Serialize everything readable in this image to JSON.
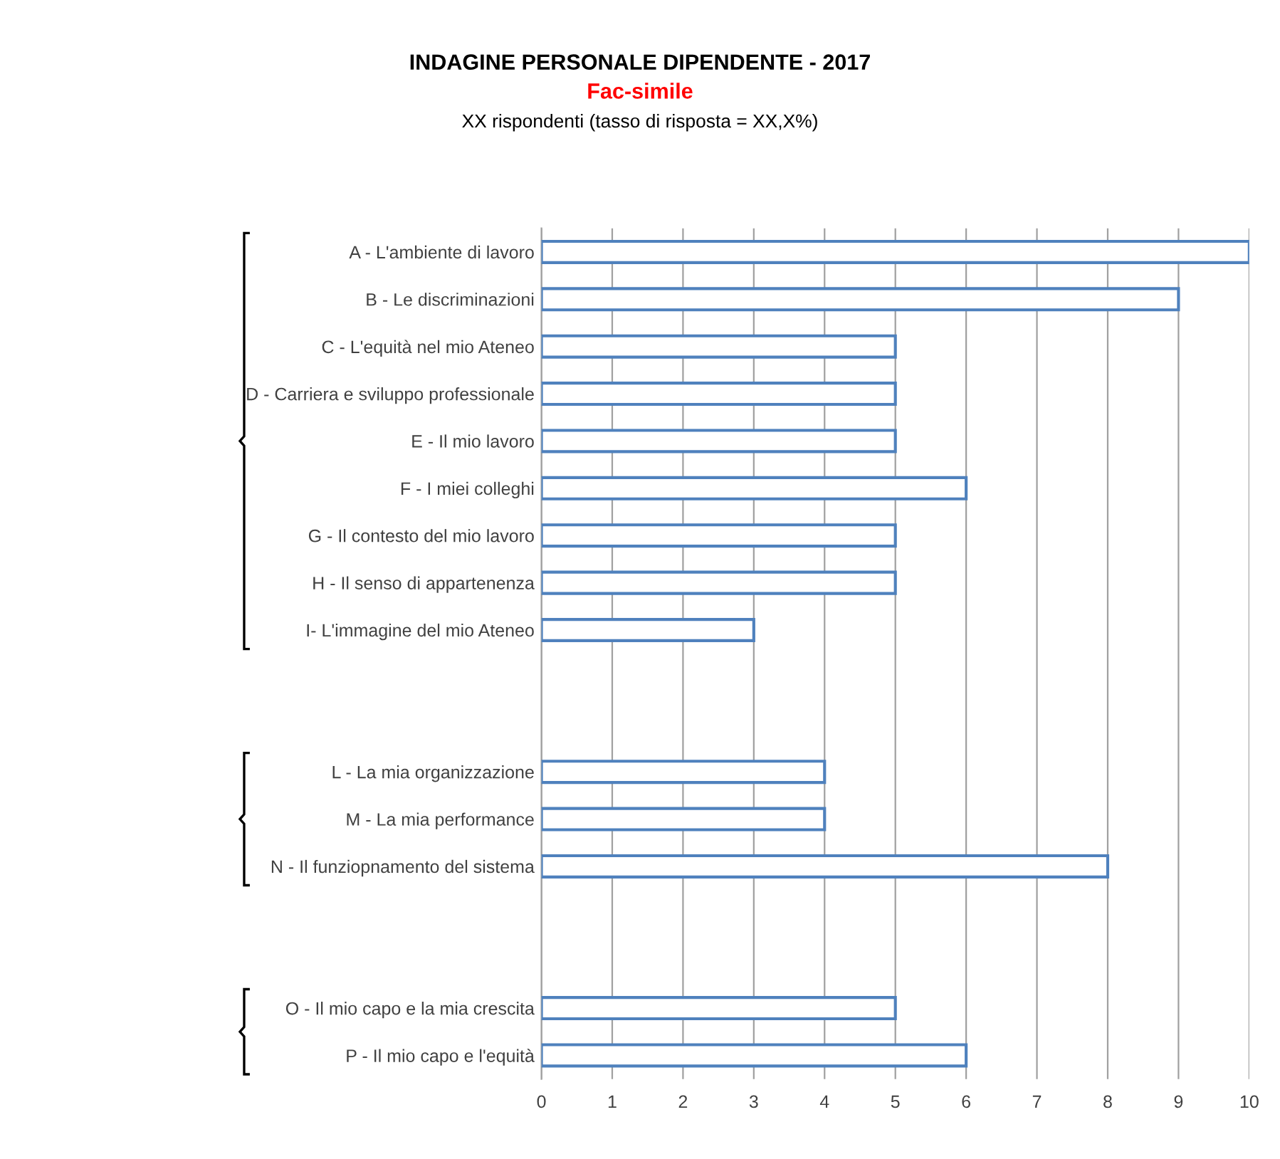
{
  "chart_data": {
    "type": "bar",
    "orientation": "horizontal",
    "title": "INDAGINE PERSONALE DIPENDENTE - 2017",
    "subtitle": "Fac-simile",
    "annotations": [
      "XX rispondenti (tasso di risposta = XX,X%)"
    ],
    "categories": [
      "A - L'ambiente di lavoro",
      "B - Le discriminazioni",
      "C - L'equità nel mio Ateneo",
      "D - Carriera e sviluppo professionale",
      "E - Il mio lavoro",
      "F - I miei colleghi",
      "G - Il contesto del mio lavoro",
      "H - Il senso di appartenenza",
      "I- L'immagine del mio Ateneo",
      null,
      null,
      "L - La mia organizzazione",
      "M - La mia performance",
      "N - Il funziopnamento del sistema",
      null,
      null,
      "O - Il mio capo e la mia crescita",
      "P - Il mio capo e l'equità"
    ],
    "values": [
      10,
      9,
      5,
      5,
      5,
      6,
      5,
      5,
      3,
      null,
      null,
      4,
      4,
      8,
      null,
      null,
      5,
      6
    ],
    "color": "#4f81bd",
    "xlim": [
      0,
      10
    ],
    "xticks": [
      0,
      1,
      2,
      3,
      4,
      5,
      6,
      7,
      8,
      9,
      10
    ],
    "grid": "x"
  }
}
